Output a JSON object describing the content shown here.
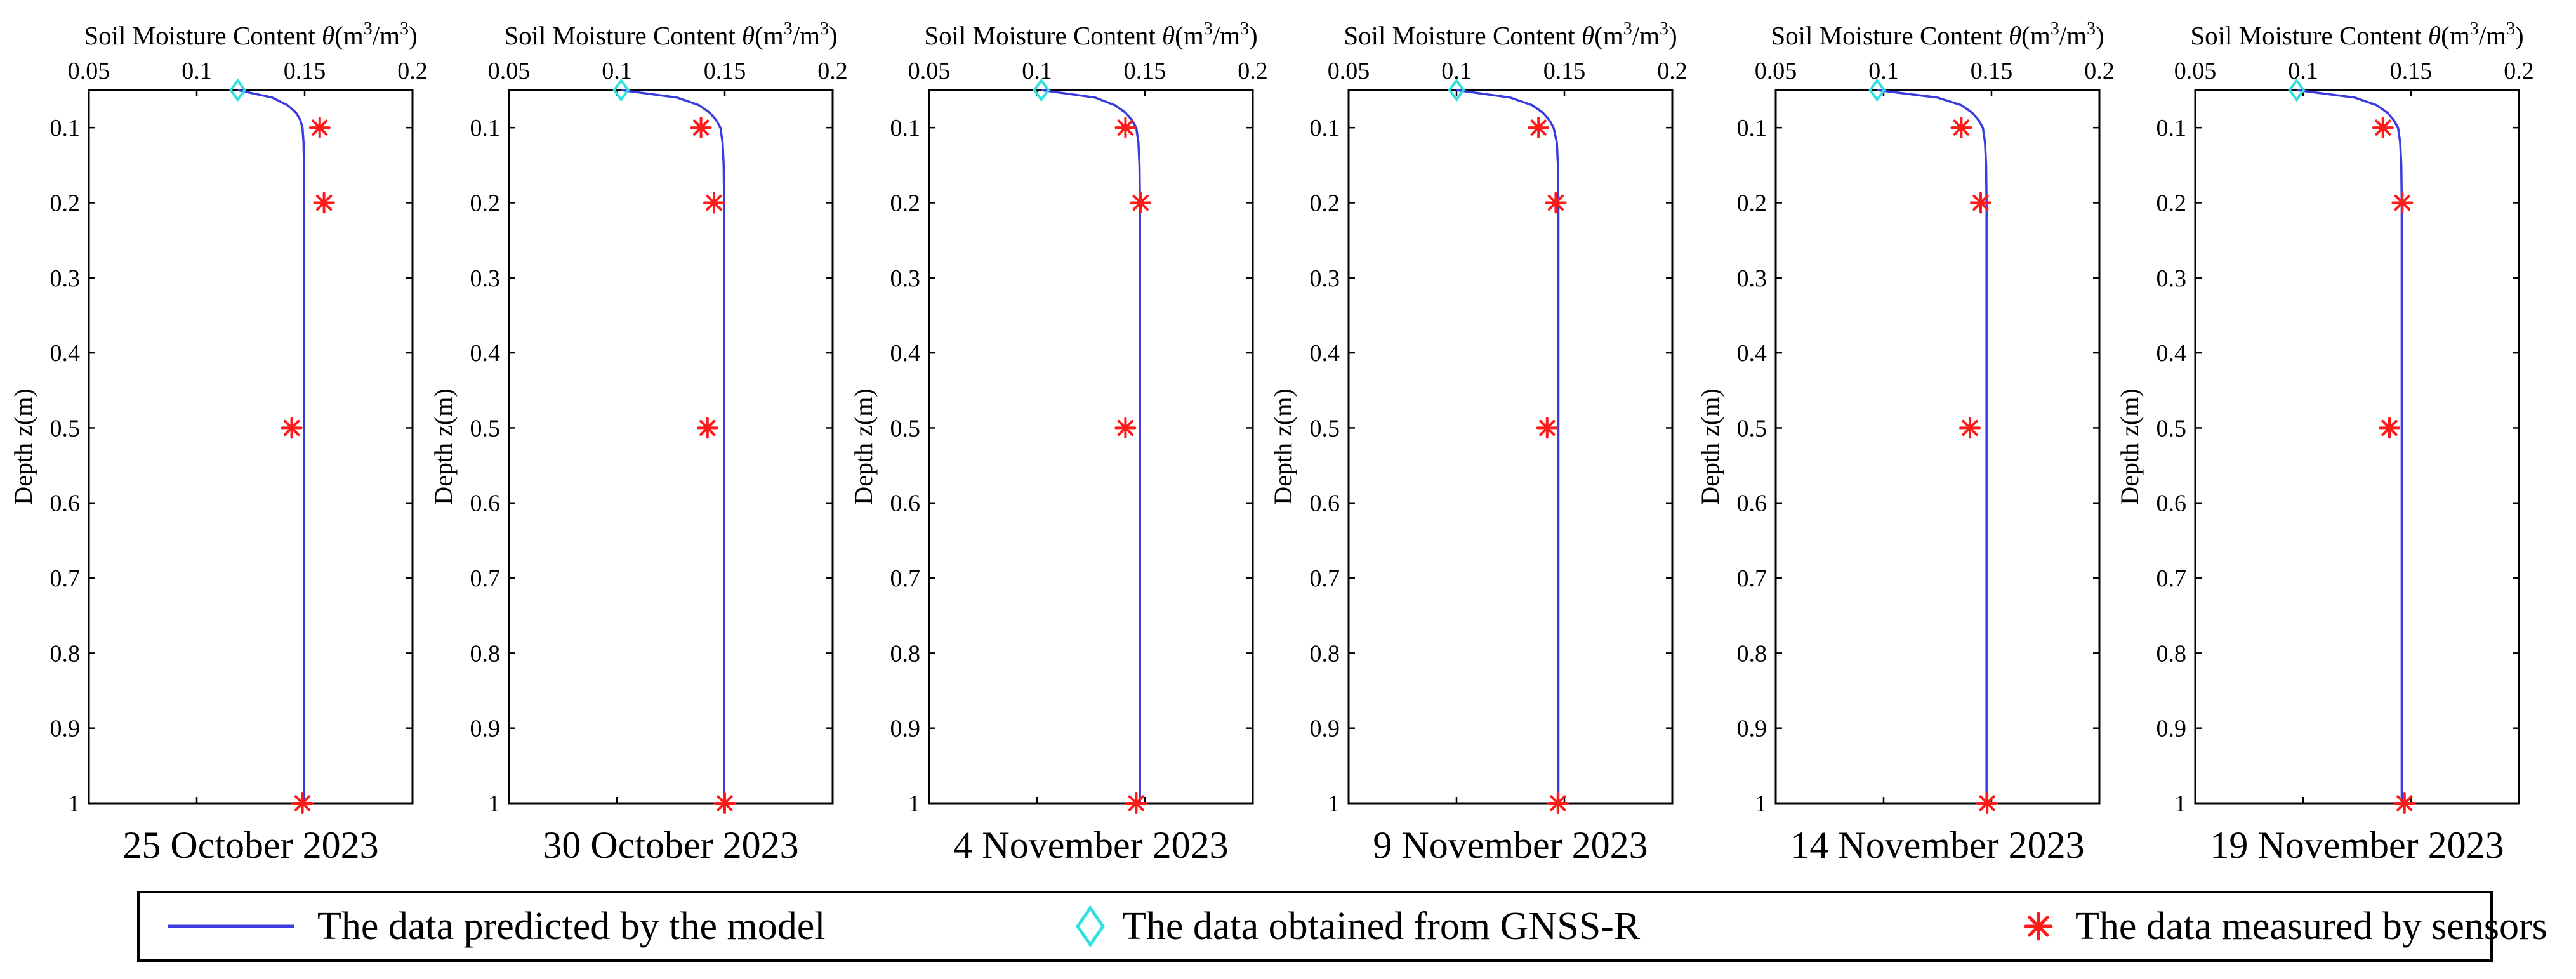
{
  "chart_data": {
    "type": "line",
    "x_axis_title": "Soil Moisture Content",
    "x_axis_symbol": "θ",
    "x_axis_unit_open": "(m",
    "x_axis_unit_sup1": "3",
    "x_axis_unit_mid": "/m",
    "x_axis_unit_sup2": "3",
    "x_axis_unit_close": ")",
    "y_axis_title": "Depth z(m)",
    "xlim": [
      0.05,
      0.2
    ],
    "ylim": [
      0.05,
      1.0
    ],
    "y_reversed": true,
    "x_axis_position": "top",
    "grid": false,
    "xticks": [
      "0.05",
      "0.1",
      "0.15",
      "0.2"
    ],
    "xtick_values": [
      0.05,
      0.1,
      0.15,
      0.2
    ],
    "yticks": [
      "0.1",
      "0.2",
      "0.3",
      "0.4",
      "0.5",
      "0.6",
      "0.7",
      "0.8",
      "0.9",
      "1"
    ],
    "ytick_values": [
      0.1,
      0.2,
      0.3,
      0.4,
      0.5,
      0.6,
      0.7,
      0.8,
      0.9,
      1.0
    ],
    "panels": [
      {
        "date": "25 October 2023",
        "model": {
          "depth": [
            0.05,
            0.06,
            0.07,
            0.08,
            0.09,
            0.1,
            0.12,
            0.15,
            0.2,
            0.3,
            0.5,
            0.7,
            1.0
          ],
          "theta": [
            0.119,
            0.135,
            0.142,
            0.146,
            0.148,
            0.149,
            0.1495,
            0.1497,
            0.1498,
            0.1498,
            0.1498,
            0.1498,
            0.1498
          ]
        },
        "gnss_r": {
          "depth": 0.05,
          "theta": 0.119
        },
        "sensors": {
          "depth": [
            0.1,
            0.2,
            0.5,
            1.0
          ],
          "theta": [
            0.157,
            0.159,
            0.144,
            0.149
          ]
        }
      },
      {
        "date": "30 October 2023",
        "model": {
          "depth": [
            0.05,
            0.06,
            0.07,
            0.08,
            0.09,
            0.1,
            0.12,
            0.15,
            0.2,
            0.3,
            0.5,
            0.7,
            1.0
          ],
          "theta": [
            0.102,
            0.128,
            0.138,
            0.143,
            0.146,
            0.148,
            0.149,
            0.1495,
            0.1497,
            0.1497,
            0.1497,
            0.1497,
            0.1497
          ]
        },
        "gnss_r": {
          "depth": 0.05,
          "theta": 0.102
        },
        "sensors": {
          "depth": [
            0.1,
            0.2,
            0.5,
            1.0
          ],
          "theta": [
            0.139,
            0.145,
            0.142,
            0.15
          ]
        }
      },
      {
        "date": "4 November 2023",
        "model": {
          "depth": [
            0.05,
            0.06,
            0.07,
            0.08,
            0.09,
            0.1,
            0.12,
            0.15,
            0.2,
            0.3,
            0.5,
            0.7,
            1.0
          ],
          "theta": [
            0.102,
            0.127,
            0.136,
            0.141,
            0.144,
            0.146,
            0.147,
            0.1475,
            0.1477,
            0.1477,
            0.1477,
            0.1477,
            0.1477
          ]
        },
        "gnss_r": {
          "depth": 0.05,
          "theta": 0.102
        },
        "sensors": {
          "depth": [
            0.1,
            0.2,
            0.5,
            1.0
          ],
          "theta": [
            0.141,
            0.148,
            0.141,
            0.146
          ]
        }
      },
      {
        "date": "9 November 2023",
        "model": {
          "depth": [
            0.05,
            0.06,
            0.07,
            0.08,
            0.09,
            0.1,
            0.12,
            0.15,
            0.2,
            0.3,
            0.5,
            0.7,
            1.0
          ],
          "theta": [
            0.1,
            0.125,
            0.135,
            0.14,
            0.143,
            0.145,
            0.1465,
            0.147,
            0.1472,
            0.1472,
            0.1472,
            0.1472,
            0.1472
          ]
        },
        "gnss_r": {
          "depth": 0.05,
          "theta": 0.1
        },
        "sensors": {
          "depth": [
            0.1,
            0.2,
            0.5,
            1.0
          ],
          "theta": [
            0.138,
            0.146,
            0.142,
            0.147
          ]
        }
      },
      {
        "date": "14 November 2023",
        "model": {
          "depth": [
            0.05,
            0.06,
            0.07,
            0.08,
            0.09,
            0.1,
            0.12,
            0.15,
            0.2,
            0.3,
            0.5,
            0.7,
            1.0
          ],
          "theta": [
            0.097,
            0.125,
            0.136,
            0.141,
            0.144,
            0.146,
            0.147,
            0.1475,
            0.1477,
            0.1477,
            0.1477,
            0.1477,
            0.1477
          ]
        },
        "gnss_r": {
          "depth": 0.05,
          "theta": 0.097
        },
        "sensors": {
          "depth": [
            0.1,
            0.2,
            0.5,
            1.0
          ],
          "theta": [
            0.136,
            0.145,
            0.14,
            0.148
          ]
        }
      },
      {
        "date": "19 November 2023",
        "model": {
          "depth": [
            0.05,
            0.06,
            0.07,
            0.08,
            0.09,
            0.1,
            0.12,
            0.15,
            0.2,
            0.3,
            0.5,
            0.7,
            1.0
          ],
          "theta": [
            0.097,
            0.124,
            0.134,
            0.139,
            0.142,
            0.144,
            0.145,
            0.1455,
            0.1457,
            0.1457,
            0.1457,
            0.1457,
            0.1457
          ]
        },
        "gnss_r": {
          "depth": 0.05,
          "theta": 0.097
        },
        "sensors": {
          "depth": [
            0.1,
            0.2,
            0.5,
            1.0
          ],
          "theta": [
            0.137,
            0.146,
            0.14,
            0.147
          ]
        }
      }
    ],
    "legend": {
      "placement": "bottom",
      "entries": [
        {
          "key": "model",
          "label": "The data predicted by the model"
        },
        {
          "key": "gnss_r",
          "label": "The data obtained from GNSS-R"
        },
        {
          "key": "sensors",
          "label": "The data measured by sensors"
        }
      ]
    },
    "colors": {
      "model": "#3a3adf",
      "gnss_r": "#33e0e0",
      "sensors": "#ff1a1a",
      "axes": "#000000"
    }
  }
}
